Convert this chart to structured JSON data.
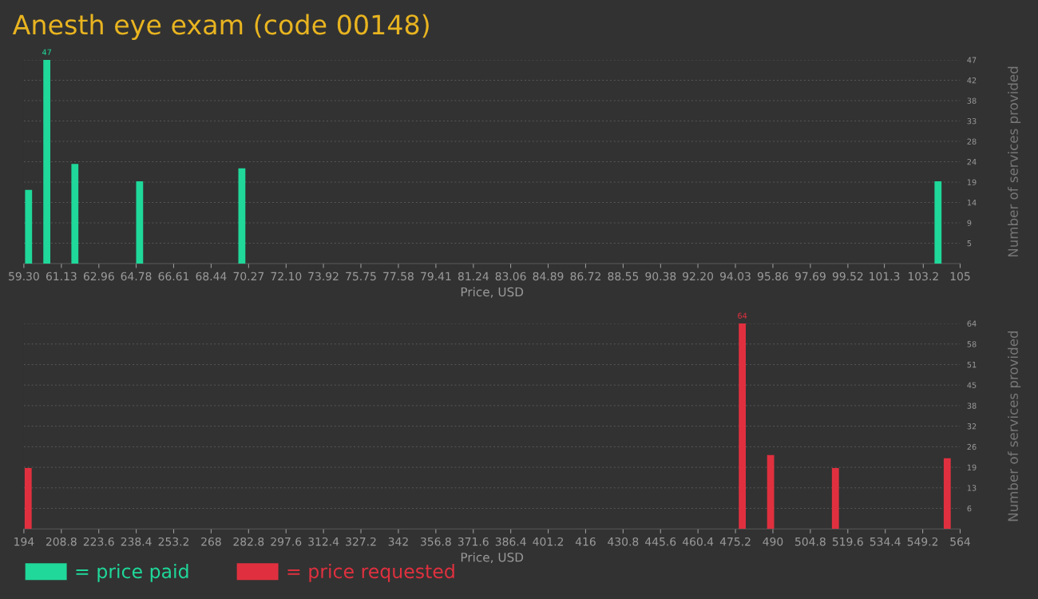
{
  "chart_data": [
    {
      "type": "bar",
      "title": "Anesth eye exam (code 00148)",
      "xlabel": "Price, USD",
      "ylabel": "Number of services provided",
      "x": [
        59.53,
        60.42,
        61.79,
        64.95,
        69.94,
        103.92
      ],
      "series": [
        {
          "name": "= price paid",
          "color": "#1fd89a",
          "values": [
            17,
            47,
            23,
            19,
            22,
            19
          ],
          "value_labels": [
            null,
            "47",
            null,
            null,
            null,
            null
          ]
        }
      ],
      "xlim": [
        59.3,
        105
      ],
      "xticks": [
        {
          "value": 59.3,
          "label": "59.30"
        },
        {
          "value": 61.13,
          "label": "61.13"
        },
        {
          "value": 62.96,
          "label": "62.96"
        },
        {
          "value": 64.78,
          "label": "64.78"
        },
        {
          "value": 66.61,
          "label": "66.61"
        },
        {
          "value": 68.44,
          "label": "68.44"
        },
        {
          "value": 70.27,
          "label": "70.27"
        },
        {
          "value": 72.1,
          "label": "72.10"
        },
        {
          "value": 73.92,
          "label": "73.92"
        },
        {
          "value": 75.75,
          "label": "75.75"
        },
        {
          "value": 77.58,
          "label": "77.58"
        },
        {
          "value": 79.41,
          "label": "79.41"
        },
        {
          "value": 81.24,
          "label": "81.24"
        },
        {
          "value": 83.06,
          "label": "83.06"
        },
        {
          "value": 84.89,
          "label": "84.89"
        },
        {
          "value": 86.72,
          "label": "86.72"
        },
        {
          "value": 88.55,
          "label": "88.55"
        },
        {
          "value": 90.38,
          "label": "90.38"
        },
        {
          "value": 92.2,
          "label": "92.20"
        },
        {
          "value": 94.03,
          "label": "94.03"
        },
        {
          "value": 95.86,
          "label": "95.86"
        },
        {
          "value": 97.69,
          "label": "97.69"
        },
        {
          "value": 99.52,
          "label": "99.52"
        },
        {
          "value": 101.3,
          "label": "101.3"
        },
        {
          "value": 103.2,
          "label": "103.2"
        },
        {
          "value": 105,
          "label": "105"
        }
      ],
      "ylim": [
        0,
        47
      ],
      "yticks": [
        {
          "value": 4.7,
          "label": "5"
        },
        {
          "value": 9.4,
          "label": "9"
        },
        {
          "value": 14.1,
          "label": "14"
        },
        {
          "value": 18.8,
          "label": "19"
        },
        {
          "value": 23.5,
          "label": "24"
        },
        {
          "value": 28.2,
          "label": "28"
        },
        {
          "value": 32.9,
          "label": "33"
        },
        {
          "value": 37.6,
          "label": "38"
        },
        {
          "value": 42.3,
          "label": "42"
        },
        {
          "value": 47,
          "label": "47"
        }
      ],
      "grid": "y",
      "legend": "bottom left"
    },
    {
      "type": "bar",
      "xlabel": "Price, USD",
      "ylabel": "Number of services provided",
      "x": [
        195.7,
        477.9,
        489.1,
        514.7,
        558.9
      ],
      "series": [
        {
          "name": "= price requested",
          "color": "#e0303f",
          "values": [
            19,
            64,
            23,
            19,
            22
          ],
          "value_labels": [
            null,
            "64",
            null,
            null,
            null
          ]
        }
      ],
      "xlim": [
        194,
        564
      ],
      "xticks": [
        194,
        208.8,
        223.6,
        238.4,
        253.2,
        268,
        282.8,
        297.6,
        312.4,
        327.2,
        342,
        356.8,
        371.6,
        386.4,
        401.2,
        416,
        430.8,
        445.6,
        460.4,
        475.2,
        490,
        504.8,
        519.6,
        534.4,
        549.2,
        564
      ],
      "ylim": [
        0,
        64
      ],
      "yticks": [
        {
          "value": 6.4,
          "label": "6"
        },
        {
          "value": 12.8,
          "label": "13"
        },
        {
          "value": 19.2,
          "label": "19"
        },
        {
          "value": 25.6,
          "label": "26"
        },
        {
          "value": 32,
          "label": "32"
        },
        {
          "value": 38.4,
          "label": "38"
        },
        {
          "value": 44.8,
          "label": "45"
        },
        {
          "value": 51.2,
          "label": "51"
        },
        {
          "value": 57.6,
          "label": "58"
        },
        {
          "value": 64,
          "label": "64"
        }
      ],
      "grid": "y",
      "legend": "bottom left"
    }
  ]
}
